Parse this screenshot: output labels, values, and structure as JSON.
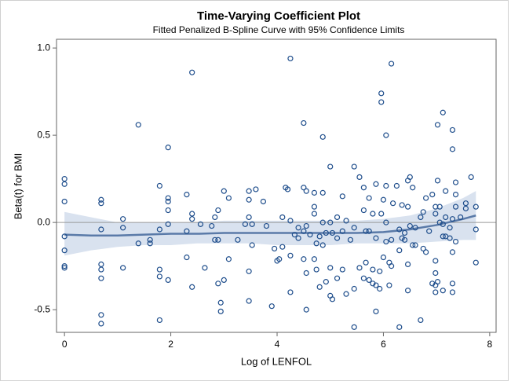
{
  "chart_data": {
    "type": "scatter",
    "title": "Time-Varying Coefficient Plot",
    "subtitle": "Fitted Penalized B-Spline Curve with 95% Confidence Limits",
    "x_label": "Log of LENFOL",
    "y_label": "Beta(t) for BMI",
    "xlim": [
      -0.15,
      8.12
    ],
    "ylim": [
      -0.63,
      1.05
    ],
    "xticks": [
      0,
      2,
      4,
      6,
      8
    ],
    "yticks": [
      {
        "value": 1.0,
        "label": "1.0"
      },
      0.5,
      {
        "value": 0.0,
        "label": "0.0"
      },
      -0.5
    ],
    "refline": 0,
    "point_color": "#1f4e8c",
    "points": [
      [
        0,
        0.25
      ],
      [
        0,
        0.22
      ],
      [
        0,
        0.12
      ],
      [
        0,
        -0.08
      ],
      [
        0,
        -0.16
      ],
      [
        0,
        -0.25
      ],
      [
        0,
        -0.26
      ],
      [
        0.69,
        0.13
      ],
      [
        0.69,
        0.11
      ],
      [
        0.69,
        -0.04
      ],
      [
        0.69,
        -0.24
      ],
      [
        0.69,
        -0.27
      ],
      [
        0.69,
        -0.32
      ],
      [
        0.69,
        -0.53
      ],
      [
        0.69,
        -0.58
      ],
      [
        1.1,
        0.02
      ],
      [
        1.1,
        -0.03
      ],
      [
        1.1,
        -0.26
      ],
      [
        1.39,
        0.56
      ],
      [
        1.39,
        -0.12
      ],
      [
        1.61,
        -0.1
      ],
      [
        1.61,
        -0.12
      ],
      [
        1.79,
        0.21
      ],
      [
        1.79,
        -0.04
      ],
      [
        1.79,
        -0.27
      ],
      [
        1.79,
        -0.31
      ],
      [
        1.79,
        -0.56
      ],
      [
        1.95,
        0.43
      ],
      [
        1.95,
        0.14
      ],
      [
        1.95,
        0.12
      ],
      [
        1.95,
        0.07
      ],
      [
        1.95,
        -0.01
      ],
      [
        1.95,
        -0.33
      ],
      [
        2.3,
        0.16
      ],
      [
        2.3,
        -0.05
      ],
      [
        2.3,
        -0.2
      ],
      [
        2.4,
        0.86
      ],
      [
        2.4,
        0.05
      ],
      [
        2.4,
        0.02
      ],
      [
        2.4,
        -0.37
      ],
      [
        2.56,
        -0.01
      ],
      [
        2.64,
        -0.26
      ],
      [
        2.77,
        -0.02
      ],
      [
        2.83,
        0.03
      ],
      [
        2.83,
        -0.1
      ],
      [
        2.89,
        0.07
      ],
      [
        2.89,
        -0.1
      ],
      [
        2.89,
        -0.35
      ],
      [
        2.94,
        -0.46
      ],
      [
        2.94,
        -0.51
      ],
      [
        3.0,
        0.18
      ],
      [
        3.0,
        -0.33
      ],
      [
        3.09,
        0.14
      ],
      [
        3.09,
        -0.21
      ],
      [
        3.26,
        -0.1
      ],
      [
        3.4,
        -0.01
      ],
      [
        3.47,
        0.18
      ],
      [
        3.47,
        0.13
      ],
      [
        3.47,
        0.03
      ],
      [
        3.47,
        -0.28
      ],
      [
        3.47,
        -0.45
      ],
      [
        3.53,
        -0.01
      ],
      [
        3.53,
        -0.13
      ],
      [
        3.6,
        0.19
      ],
      [
        3.74,
        0.12
      ],
      [
        3.8,
        -0.02
      ],
      [
        3.9,
        -0.48
      ],
      [
        3.95,
        -0.15
      ],
      [
        4.0,
        -0.22
      ],
      [
        4.04,
        -0.21
      ],
      [
        4.1,
        0.03
      ],
      [
        4.1,
        -0.14
      ],
      [
        4.16,
        0.2
      ],
      [
        4.2,
        0.19
      ],
      [
        4.25,
        0.94
      ],
      [
        4.25,
        0.01
      ],
      [
        4.25,
        -0.19
      ],
      [
        4.25,
        -0.4
      ],
      [
        4.33,
        -0.07
      ],
      [
        4.4,
        -0.09
      ],
      [
        4.4,
        -0.03
      ],
      [
        4.5,
        0.2
      ],
      [
        4.5,
        0.57
      ],
      [
        4.5,
        -0.05
      ],
      [
        4.5,
        -0.21
      ],
      [
        4.55,
        0.18
      ],
      [
        4.55,
        -0.02
      ],
      [
        4.55,
        -0.29
      ],
      [
        4.55,
        -0.5
      ],
      [
        4.62,
        -0.07
      ],
      [
        4.7,
        0.17
      ],
      [
        4.7,
        0.09
      ],
      [
        4.7,
        0.05
      ],
      [
        4.7,
        -0.21
      ],
      [
        4.74,
        -0.12
      ],
      [
        4.74,
        -0.27
      ],
      [
        4.8,
        -0.08
      ],
      [
        4.8,
        -0.37
      ],
      [
        4.86,
        0.17
      ],
      [
        4.86,
        0.49
      ],
      [
        4.86,
        0.0
      ],
      [
        4.86,
        -0.13
      ],
      [
        4.92,
        -0.06
      ],
      [
        4.92,
        -0.34
      ],
      [
        5.0,
        0.32
      ],
      [
        5.0,
        0.0
      ],
      [
        5.0,
        -0.26
      ],
      [
        5.0,
        -0.42
      ],
      [
        5.04,
        -0.06
      ],
      [
        5.04,
        -0.44
      ],
      [
        5.13,
        0.03
      ],
      [
        5.13,
        -0.09
      ],
      [
        5.13,
        -0.32
      ],
      [
        5.23,
        0.15
      ],
      [
        5.23,
        -0.05
      ],
      [
        5.23,
        -0.27
      ],
      [
        5.3,
        0.01
      ],
      [
        5.3,
        -0.41
      ],
      [
        5.38,
        -0.1
      ],
      [
        5.45,
        0.32
      ],
      [
        5.45,
        -0.03
      ],
      [
        5.45,
        -0.38
      ],
      [
        5.45,
        -0.6
      ],
      [
        5.55,
        0.26
      ],
      [
        5.55,
        -0.26
      ],
      [
        5.63,
        0.2
      ],
      [
        5.63,
        0.07
      ],
      [
        5.63,
        -0.32
      ],
      [
        5.67,
        -0.05
      ],
      [
        5.67,
        -0.23
      ],
      [
        5.73,
        -0.05
      ],
      [
        5.73,
        0.14
      ],
      [
        5.73,
        -0.33
      ],
      [
        5.8,
        0.05
      ],
      [
        5.8,
        -0.27
      ],
      [
        5.8,
        -0.35
      ],
      [
        5.86,
        0.22
      ],
      [
        5.86,
        -0.09
      ],
      [
        5.86,
        -0.36
      ],
      [
        5.86,
        -0.51
      ],
      [
        5.93,
        -0.28
      ],
      [
        5.93,
        -0.38
      ],
      [
        5.96,
        0.69
      ],
      [
        5.96,
        0.74
      ],
      [
        5.96,
        0.05
      ],
      [
        6.0,
        0.13
      ],
      [
        6.0,
        -0.2
      ],
      [
        6.05,
        0.5
      ],
      [
        6.05,
        0.21
      ],
      [
        6.05,
        0.0
      ],
      [
        6.05,
        -0.11
      ],
      [
        6.11,
        -0.23
      ],
      [
        6.11,
        -0.36
      ],
      [
        6.15,
        0.91
      ],
      [
        6.15,
        -0.1
      ],
      [
        6.15,
        -0.25
      ],
      [
        6.18,
        0.11
      ],
      [
        6.25,
        0.21
      ],
      [
        6.3,
        -0.6
      ],
      [
        6.3,
        -0.04
      ],
      [
        6.3,
        -0.16
      ],
      [
        6.35,
        0.1
      ],
      [
        6.35,
        -0.09
      ],
      [
        6.4,
        -0.06
      ],
      [
        6.4,
        -0.1
      ],
      [
        6.46,
        0.09
      ],
      [
        6.46,
        -0.24
      ],
      [
        6.46,
        -0.39
      ],
      [
        6.46,
        0.24
      ],
      [
        6.5,
        0.26
      ],
      [
        6.5,
        -0.02
      ],
      [
        6.55,
        0.2
      ],
      [
        6.55,
        -0.13
      ],
      [
        6.6,
        -0.03
      ],
      [
        6.6,
        -0.13
      ],
      [
        6.7,
        0.03
      ],
      [
        6.7,
        -0.56
      ],
      [
        6.75,
        0.06
      ],
      [
        6.75,
        -0.15
      ],
      [
        6.8,
        0.14
      ],
      [
        6.8,
        -0.17
      ],
      [
        6.86,
        -0.05
      ],
      [
        6.92,
        0.16
      ],
      [
        6.92,
        -0.35
      ],
      [
        6.98,
        0.09
      ],
      [
        6.98,
        0.05
      ],
      [
        6.98,
        -0.22
      ],
      [
        6.98,
        -0.29
      ],
      [
        6.98,
        -0.36
      ],
      [
        6.98,
        -0.4
      ],
      [
        7.02,
        0.56
      ],
      [
        7.02,
        0.24
      ],
      [
        7.02,
        -0.34
      ],
      [
        7.06,
        0.09
      ],
      [
        7.06,
        0.0
      ],
      [
        7.12,
        0.63
      ],
      [
        7.12,
        -0.01
      ],
      [
        7.12,
        -0.08
      ],
      [
        7.12,
        -0.39
      ],
      [
        7.17,
        0.18
      ],
      [
        7.17,
        0.03
      ],
      [
        7.17,
        -0.08
      ],
      [
        7.25,
        -0.03
      ],
      [
        7.25,
        -0.09
      ],
      [
        7.3,
        0.42
      ],
      [
        7.3,
        0.53
      ],
      [
        7.3,
        0.02
      ],
      [
        7.3,
        -0.17
      ],
      [
        7.3,
        -0.35
      ],
      [
        7.3,
        -0.4
      ],
      [
        7.36,
        0.23
      ],
      [
        7.36,
        0.16
      ],
      [
        7.36,
        0.09
      ],
      [
        7.36,
        -0.11
      ],
      [
        7.45,
        0.03
      ],
      [
        7.55,
        0.08
      ],
      [
        7.55,
        0.11
      ],
      [
        7.65,
        0.26
      ],
      [
        7.74,
        0.09
      ],
      [
        7.74,
        -0.04
      ],
      [
        7.74,
        -0.23
      ]
    ],
    "fit": {
      "line_color": "#5a7aa8",
      "band_color": "#d9e2ef",
      "x": [
        0,
        0.5,
        1,
        1.5,
        2,
        2.5,
        3,
        3.5,
        4,
        4.5,
        5,
        5.5,
        6,
        6.5,
        7,
        7.5,
        7.74
      ],
      "y": [
        -0.07,
        -0.075,
        -0.075,
        -0.07,
        -0.065,
        -0.065,
        -0.06,
        -0.06,
        -0.06,
        -0.06,
        -0.06,
        -0.06,
        -0.055,
        -0.04,
        -0.015,
        0.02,
        0.04
      ],
      "upper": [
        0.06,
        0.03,
        0.0,
        0.0,
        0.0,
        0.0,
        0.01,
        0.01,
        0.01,
        0.01,
        0.01,
        0.01,
        0.02,
        0.04,
        0.08,
        0.14,
        0.18
      ],
      "lower": [
        -0.19,
        -0.16,
        -0.14,
        -0.13,
        -0.13,
        -0.12,
        -0.12,
        -0.12,
        -0.13,
        -0.13,
        -0.13,
        -0.12,
        -0.12,
        -0.12,
        -0.11,
        -0.1,
        -0.1
      ]
    }
  }
}
